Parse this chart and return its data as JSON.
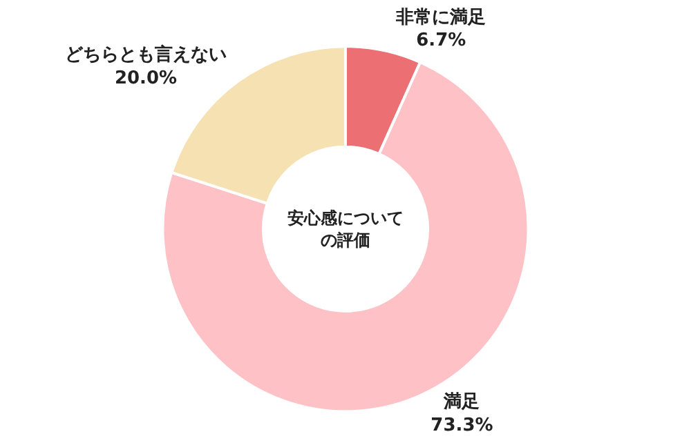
{
  "chart_data": {
    "type": "donut",
    "categories": [
      "非常に満足",
      "満足",
      "どちらとも言えない"
    ],
    "values": [
      6.7,
      73.3,
      20.0
    ],
    "value_labels": [
      "6.7%",
      "73.3%",
      "20.0%"
    ],
    "colors": [
      "#ec6f73",
      "#fdc1c6",
      "#f5e1b1"
    ],
    "annotations": [
      "安心感について",
      "の評価"
    ],
    "legend": false
  }
}
